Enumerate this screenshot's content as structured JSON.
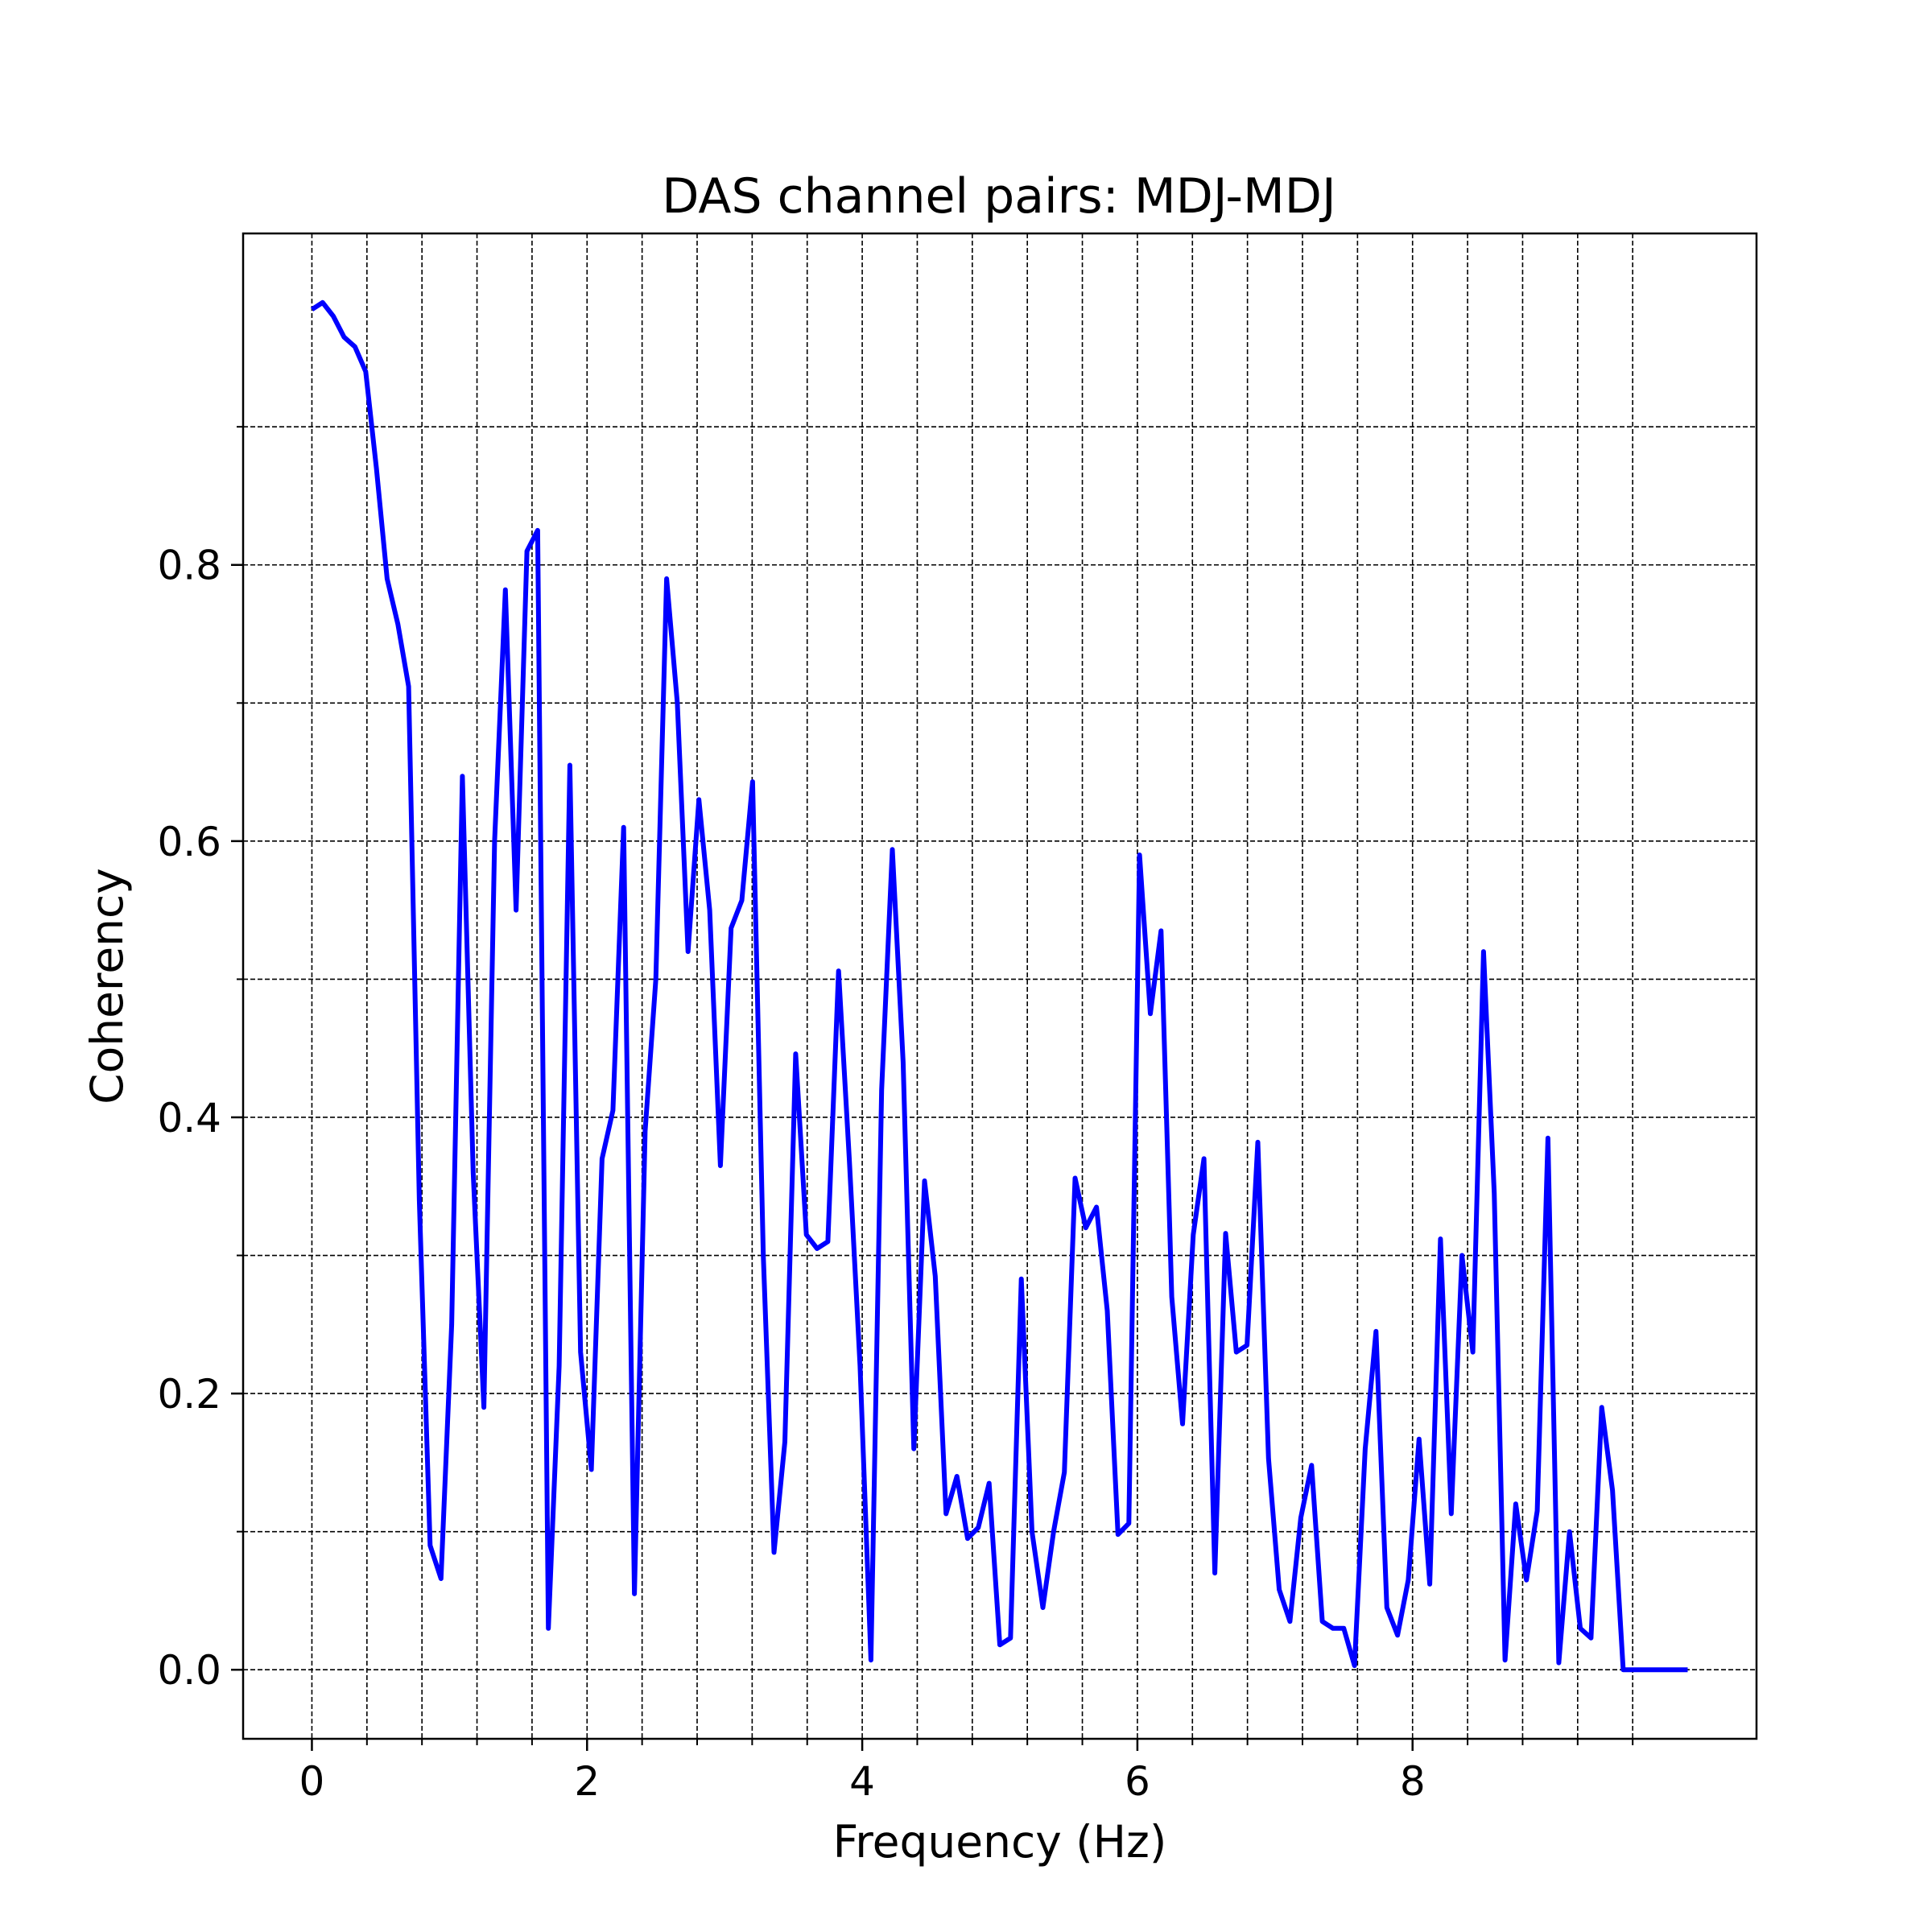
{
  "chart_data": {
    "type": "line",
    "title": "DAS channel pairs: MDJ-MDJ",
    "xlabel": "Frequency (Hz)",
    "ylabel": "Coherency",
    "xlim": [
      -0.5,
      10.5
    ],
    "ylim": [
      -0.05,
      1.04
    ],
    "x_major_ticks": [
      0,
      2,
      4,
      6,
      8
    ],
    "x_tick_labels": [
      "0",
      "2",
      "4",
      "6",
      "8"
    ],
    "x_minor_ticks": [
      0.4,
      0.8,
      1.2,
      1.6,
      2.4,
      2.8,
      3.2,
      3.6,
      4.4,
      4.8,
      5.2,
      5.6,
      6.4,
      6.8,
      7.2,
      7.6,
      8.4,
      8.8,
      9.2,
      9.6
    ],
    "y_major_ticks": [
      0.0,
      0.2,
      0.4,
      0.6,
      0.8
    ],
    "y_tick_labels": [
      "0.0",
      "0.2",
      "0.4",
      "0.6",
      "0.8"
    ],
    "y_minor_ticks": [
      0.1,
      0.3,
      0.5,
      0.7,
      0.9
    ],
    "grid": true,
    "line_color": "#0000ff",
    "series": [
      {
        "x": [
          0.0,
          0.078,
          0.156,
          0.234,
          0.313,
          0.391,
          0.469,
          0.547,
          0.625,
          0.703,
          0.781,
          0.859,
          0.938,
          1.016,
          1.094,
          1.172,
          1.25,
          1.328,
          1.406,
          1.484,
          1.563,
          1.641,
          1.719,
          1.797,
          1.875,
          1.953,
          2.031,
          2.109,
          2.188,
          2.266,
          2.344,
          2.422,
          2.5,
          2.578,
          2.656,
          2.734,
          2.813,
          2.891,
          2.969,
          3.047,
          3.125,
          3.203,
          3.281,
          3.359,
          3.438,
          3.516,
          3.594,
          3.672,
          3.75,
          3.828,
          3.906,
          3.984,
          4.063,
          4.141,
          4.219,
          4.297,
          4.375,
          4.453,
          4.531,
          4.609,
          4.688,
          4.766,
          4.844,
          4.922,
          5.0,
          5.078,
          5.156,
          5.234,
          5.313,
          5.391,
          5.469,
          5.547,
          5.625,
          5.703,
          5.781,
          5.859,
          5.938,
          6.016,
          6.094,
          6.172,
          6.25,
          6.328,
          6.406,
          6.484,
          6.563,
          6.641,
          6.719,
          6.797,
          6.875,
          6.953,
          7.031,
          7.109,
          7.188,
          7.266,
          7.344,
          7.422,
          7.5,
          7.578,
          7.656,
          7.734,
          7.813,
          7.891,
          7.969,
          8.047,
          8.125,
          8.203,
          8.281,
          8.359,
          8.438,
          8.516,
          8.594,
          8.672,
          8.75,
          8.828,
          8.906,
          8.984,
          9.063,
          9.141,
          9.219,
          9.297,
          9.375,
          9.453,
          9.531,
          9.609,
          9.688,
          9.766,
          9.844,
          9.922,
          10.0
        ],
        "y": [
          0.985,
          0.99,
          0.98,
          0.965,
          0.958,
          0.94,
          0.87,
          0.79,
          0.757,
          0.712,
          0.34,
          0.09,
          0.066,
          0.25,
          0.647,
          0.36,
          0.19,
          0.6,
          0.782,
          0.55,
          0.81,
          0.825,
          0.03,
          0.22,
          0.655,
          0.23,
          0.145,
          0.37,
          0.405,
          0.61,
          0.055,
          0.39,
          0.5,
          0.79,
          0.7,
          0.52,
          0.63,
          0.55,
          0.365,
          0.537,
          0.557,
          0.643,
          0.3,
          0.085,
          0.165,
          0.446,
          0.315,
          0.305,
          0.31,
          0.506,
          0.37,
          0.22,
          0.007,
          0.42,
          0.594,
          0.44,
          0.16,
          0.354,
          0.285,
          0.113,
          0.14,
          0.095,
          0.103,
          0.135,
          0.018,
          0.023,
          0.283,
          0.1,
          0.045,
          0.1,
          0.143,
          0.356,
          0.32,
          0.335,
          0.26,
          0.098,
          0.106,
          0.59,
          0.475,
          0.535,
          0.27,
          0.178,
          0.315,
          0.37,
          0.07,
          0.316,
          0.23,
          0.235,
          0.382,
          0.153,
          0.058,
          0.035,
          0.11,
          0.148,
          0.035,
          0.03,
          0.03,
          0.003,
          0.16,
          0.245,
          0.045,
          0.025,
          0.065,
          0.167,
          0.062,
          0.312,
          0.113,
          0.3,
          0.23,
          0.52,
          0.345,
          0.007,
          0.12,
          0.065,
          0.115,
          0.385,
          0.005,
          0.1,
          0.03,
          0.023,
          0.19,
          0.13,
          0.0,
          0.0,
          0.0,
          0.0,
          0.0,
          0.0,
          0.0
        ]
      }
    ]
  }
}
